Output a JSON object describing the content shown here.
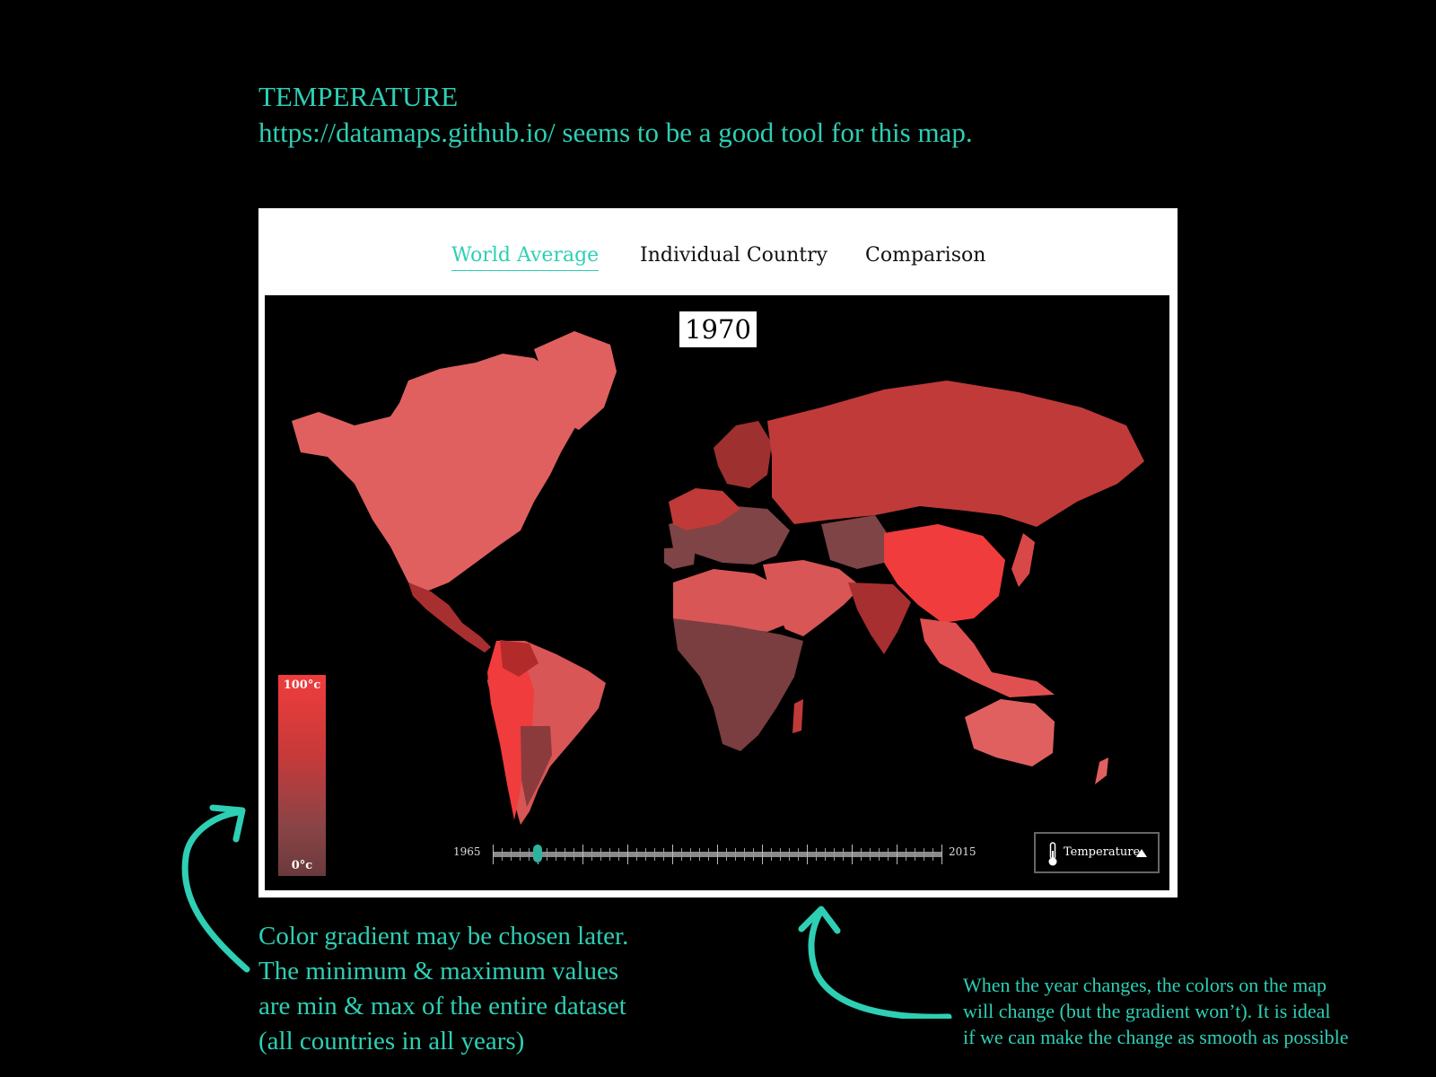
{
  "heading": {
    "title": "TEMPERATURE",
    "subtitle": "https://datamaps.github.io/ seems to be a good tool for this map."
  },
  "tabs": [
    {
      "label": "World Average",
      "active": true
    },
    {
      "label": "Individual Country",
      "active": false
    },
    {
      "label": "Comparison",
      "active": false
    }
  ],
  "map": {
    "year": "1970",
    "legend": {
      "max_label": "100°c",
      "min_label": "0°c",
      "colors": [
        "#f03c3c",
        "#c73a3a",
        "#8a4446",
        "#6b3a3c"
      ]
    },
    "slider": {
      "start": "1965",
      "end": "2015",
      "value": 1970
    },
    "dropdown": {
      "label": "Temperature",
      "icon": "thermometer-icon"
    }
  },
  "notes": {
    "left": [
      "Color gradient may be chosen later.",
      "The minimum & maximum values",
      "are min & max of the entire dataset",
      "(all countries in all years)"
    ],
    "right": [
      "When the year changes, the colors on the map",
      "will change (but the gradient won’t). It is ideal",
      "if we can make the change as smooth as possible"
    ]
  },
  "colors": {
    "annotation": "#2ecfb4",
    "background": "#000000",
    "accent": "#2ecfb4"
  }
}
